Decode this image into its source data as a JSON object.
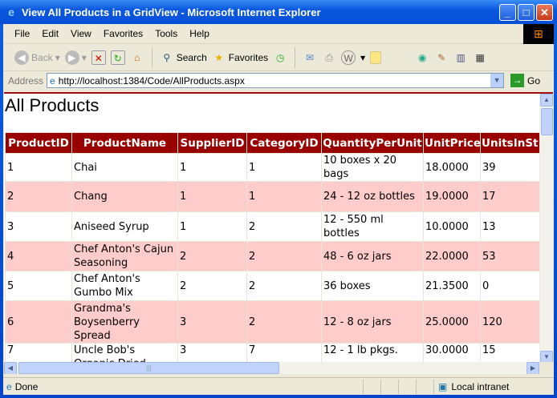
{
  "window": {
    "title": "View All Products in a GridView - Microsoft Internet Explorer"
  },
  "menu": [
    "File",
    "Edit",
    "View",
    "Favorites",
    "Tools",
    "Help"
  ],
  "toolbar": {
    "back": "Back",
    "search": "Search",
    "favorites": "Favorites"
  },
  "address": {
    "label": "Address",
    "url": "http://localhost:1384/Code/AllProducts.aspx",
    "go": "Go"
  },
  "page": {
    "heading": "All Products"
  },
  "grid": {
    "columns": [
      "ProductID",
      "ProductName",
      "SupplierID",
      "CategoryID",
      "QuantityPerUnit",
      "UnitPrice",
      "UnitsInSt"
    ],
    "rows": [
      [
        "1",
        "Chai",
        "1",
        "1",
        "10 boxes x 20 bags",
        "18.0000",
        "39"
      ],
      [
        "2",
        "Chang",
        "1",
        "1",
        "24 - 12 oz bottles",
        "19.0000",
        "17"
      ],
      [
        "3",
        "Aniseed Syrup",
        "1",
        "2",
        "12 - 550 ml bottles",
        "10.0000",
        "13"
      ],
      [
        "4",
        "Chef Anton's Cajun Seasoning",
        "2",
        "2",
        "48 - 6 oz jars",
        "22.0000",
        "53"
      ],
      [
        "5",
        "Chef Anton's Gumbo Mix",
        "2",
        "2",
        "36 boxes",
        "21.3500",
        "0"
      ],
      [
        "6",
        "Grandma's Boysenberry Spread",
        "3",
        "2",
        "12 - 8 oz jars",
        "25.0000",
        "120"
      ],
      [
        "7",
        "Uncle Bob's Organic Dried Pears",
        "3",
        "7",
        "12 - 1 lb pkgs.",
        "30.0000",
        "15"
      ]
    ],
    "header_color": "#990000",
    "alt_row_color": "#ffcccc"
  },
  "status": {
    "text": "Done",
    "zone": "Local intranet"
  }
}
